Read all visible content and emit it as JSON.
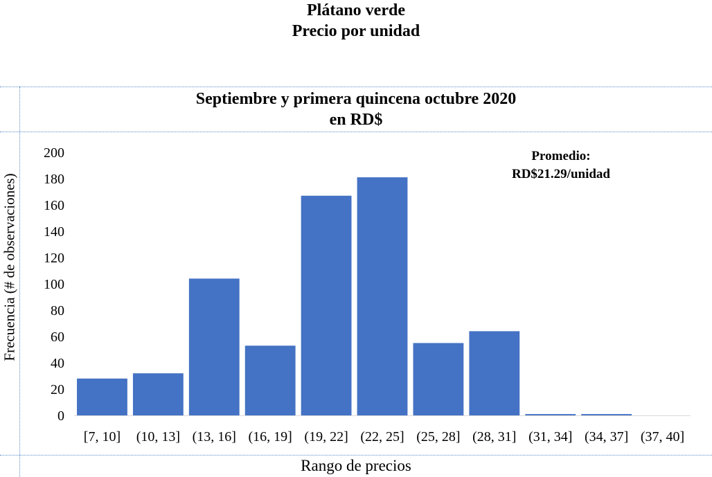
{
  "page": {
    "title": "Plátano verde",
    "subtitle": "Precio por unidad"
  },
  "chart_data": {
    "type": "bar",
    "title": "Septiembre y primera quincena octubre 2020",
    "subtitle": "en RD$",
    "xlabel": "Rango de precios",
    "ylabel": "Frecuencia (# de observaciones)",
    "categories": [
      "[7, 10]",
      "(10, 13]",
      "(13, 16]",
      "(16, 19]",
      "(19, 22]",
      "(22, 25]",
      "(25, 28]",
      "(28, 31]",
      "(31, 34]",
      "(34, 37]",
      "(37, 40]"
    ],
    "values": [
      28,
      32,
      104,
      53,
      167,
      181,
      55,
      64,
      1,
      1,
      0
    ],
    "ylim": [
      0,
      200
    ],
    "yticks": [
      0,
      20,
      40,
      60,
      80,
      100,
      120,
      140,
      160,
      180,
      200
    ],
    "grid": false,
    "annotation": {
      "line1": "Promedio:",
      "line2": "RD$21.29/unidad"
    },
    "bar_color": "#4472c4"
  }
}
